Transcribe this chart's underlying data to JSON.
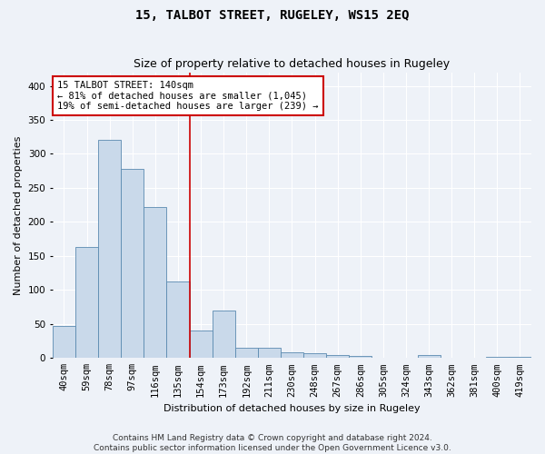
{
  "title": "15, TALBOT STREET, RUGELEY, WS15 2EQ",
  "subtitle": "Size of property relative to detached houses in Rugeley",
  "xlabel": "Distribution of detached houses by size in Rugeley",
  "ylabel": "Number of detached properties",
  "categories": [
    "40sqm",
    "59sqm",
    "78sqm",
    "97sqm",
    "116sqm",
    "135sqm",
    "154sqm",
    "173sqm",
    "192sqm",
    "211sqm",
    "230sqm",
    "248sqm",
    "267sqm",
    "286sqm",
    "305sqm",
    "324sqm",
    "343sqm",
    "362sqm",
    "381sqm",
    "400sqm",
    "419sqm"
  ],
  "values": [
    47,
    163,
    320,
    278,
    222,
    112,
    40,
    70,
    15,
    15,
    9,
    7,
    4,
    3,
    0,
    0,
    4,
    0,
    0,
    2,
    2
  ],
  "bar_color": "#c9d9ea",
  "bar_edge_color": "#5a8ab0",
  "vline_x": 5.5,
  "vline_color": "#cc0000",
  "annotation_line1": "15 TALBOT STREET: 140sqm",
  "annotation_line2": "← 81% of detached houses are smaller (1,045)",
  "annotation_line3": "19% of semi-detached houses are larger (239) →",
  "annotation_box_color": "#ffffff",
  "annotation_box_edge_color": "#cc0000",
  "ylim": [
    0,
    420
  ],
  "yticks": [
    0,
    50,
    100,
    150,
    200,
    250,
    300,
    350,
    400
  ],
  "footer": "Contains HM Land Registry data © Crown copyright and database right 2024.\nContains public sector information licensed under the Open Government Licence v3.0.",
  "bg_color": "#eef2f8",
  "plot_bg_color": "#eef2f8",
  "grid_color": "#ffffff",
  "title_fontsize": 10,
  "subtitle_fontsize": 9,
  "axis_label_fontsize": 8,
  "tick_fontsize": 7.5,
  "annotation_fontsize": 7.5,
  "footer_fontsize": 6.5
}
